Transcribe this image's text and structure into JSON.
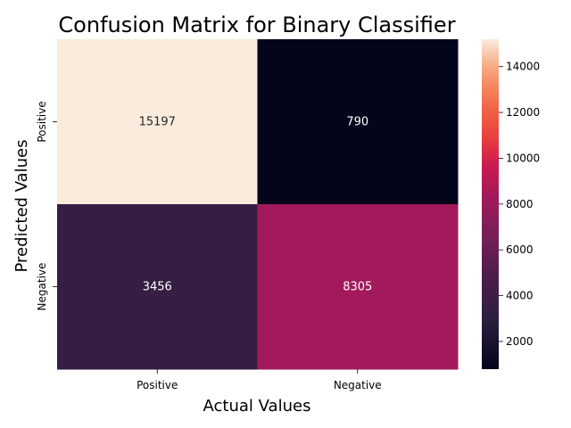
{
  "chart_data": {
    "type": "heatmap",
    "title": "Confusion Matrix for Binary Classifier",
    "xlabel": "Actual Values",
    "ylabel": "Predicted Values",
    "x_categories": [
      "Positive",
      "Negative"
    ],
    "y_categories": [
      "Positive",
      "Negative"
    ],
    "values": [
      [
        15197,
        790
      ],
      [
        3456,
        8305
      ]
    ],
    "colorbar": {
      "min": 790,
      "max": 15197,
      "ticks": [
        2000,
        4000,
        6000,
        8000,
        10000,
        12000,
        14000
      ],
      "colormap": "rocket"
    },
    "cell_label_color": "#ffffff",
    "cell_label_dark_color": "#262626"
  }
}
